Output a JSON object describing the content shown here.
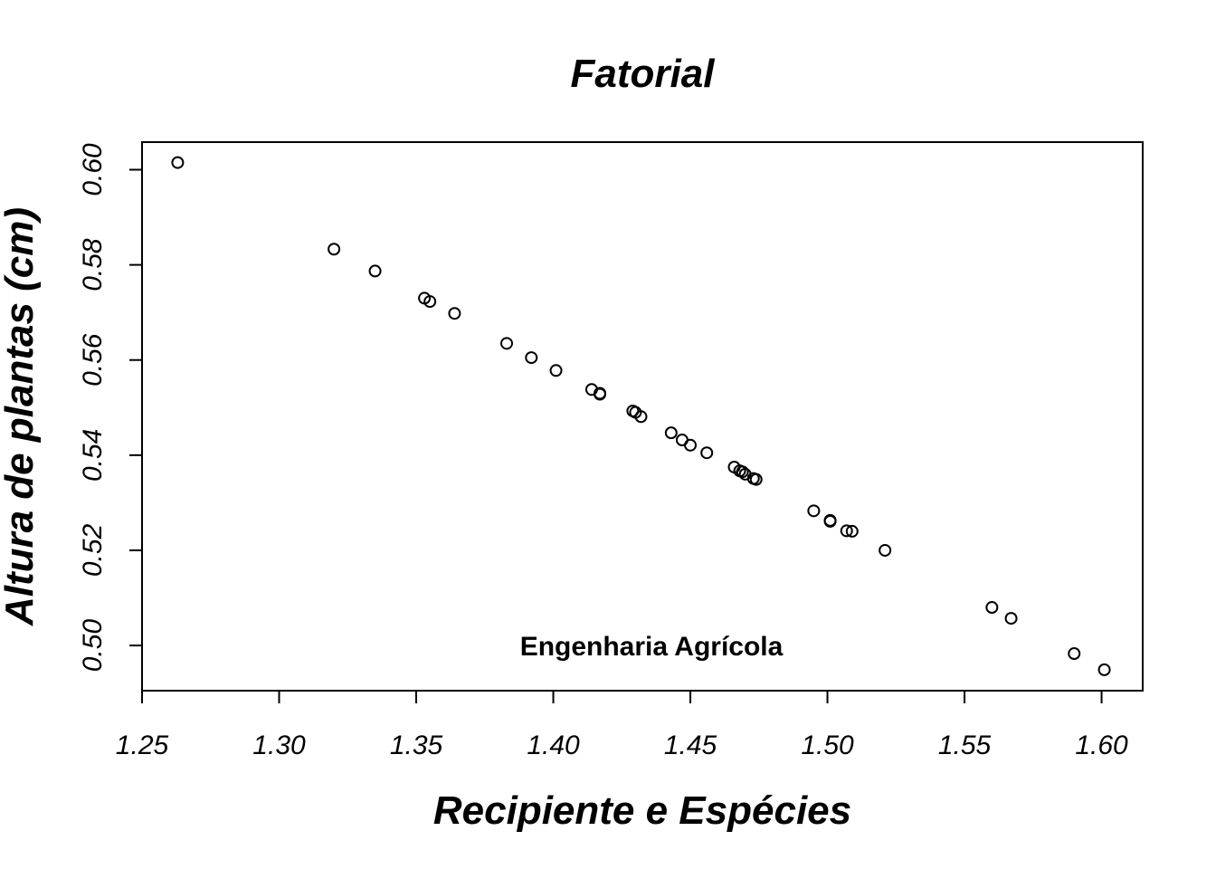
{
  "chart_data": {
    "type": "scatter",
    "title": "Fatorial",
    "xlabel": "Recipiente e Espécies",
    "ylabel": "Altura de plantas (cm)",
    "annotation": "Engenharia Agrícola",
    "xlim": [
      1.25,
      1.615
    ],
    "ylim": [
      0.4905,
      0.6058
    ],
    "xticks": [
      1.25,
      1.3,
      1.35,
      1.4,
      1.45,
      1.5,
      1.55,
      1.6
    ],
    "xtick_labels": [
      "1.25",
      "1.30",
      "1.35",
      "1.40",
      "1.45",
      "1.50",
      "1.55",
      "1.60"
    ],
    "yticks": [
      0.5,
      0.52,
      0.54,
      0.56,
      0.58,
      0.6
    ],
    "ytick_labels": [
      "0.50",
      "0.52",
      "0.54",
      "0.56",
      "0.58",
      "0.60"
    ],
    "grid": false,
    "marker": "open-circle",
    "points": [
      {
        "x": 1.263,
        "y": 0.6015
      },
      {
        "x": 1.32,
        "y": 0.5833
      },
      {
        "x": 1.335,
        "y": 0.5787
      },
      {
        "x": 1.353,
        "y": 0.573
      },
      {
        "x": 1.355,
        "y": 0.5723
      },
      {
        "x": 1.364,
        "y": 0.5698
      },
      {
        "x": 1.383,
        "y": 0.5635
      },
      {
        "x": 1.392,
        "y": 0.5605
      },
      {
        "x": 1.401,
        "y": 0.5578
      },
      {
        "x": 1.414,
        "y": 0.5538
      },
      {
        "x": 1.417,
        "y": 0.553
      },
      {
        "x": 1.417,
        "y": 0.5528
      },
      {
        "x": 1.429,
        "y": 0.5493
      },
      {
        "x": 1.43,
        "y": 0.549
      },
      {
        "x": 1.432,
        "y": 0.5481
      },
      {
        "x": 1.443,
        "y": 0.5447
      },
      {
        "x": 1.447,
        "y": 0.5432
      },
      {
        "x": 1.45,
        "y": 0.5421
      },
      {
        "x": 1.456,
        "y": 0.5405
      },
      {
        "x": 1.466,
        "y": 0.5375
      },
      {
        "x": 1.468,
        "y": 0.5367
      },
      {
        "x": 1.469,
        "y": 0.5365
      },
      {
        "x": 1.47,
        "y": 0.536
      },
      {
        "x": 1.473,
        "y": 0.5351
      },
      {
        "x": 1.474,
        "y": 0.5349
      },
      {
        "x": 1.495,
        "y": 0.5283
      },
      {
        "x": 1.501,
        "y": 0.5263
      },
      {
        "x": 1.501,
        "y": 0.5261
      },
      {
        "x": 1.507,
        "y": 0.5241
      },
      {
        "x": 1.509,
        "y": 0.524
      },
      {
        "x": 1.521,
        "y": 0.52
      },
      {
        "x": 1.56,
        "y": 0.508
      },
      {
        "x": 1.567,
        "y": 0.5057
      },
      {
        "x": 1.59,
        "y": 0.4983
      },
      {
        "x": 1.601,
        "y": 0.4949
      }
    ]
  }
}
